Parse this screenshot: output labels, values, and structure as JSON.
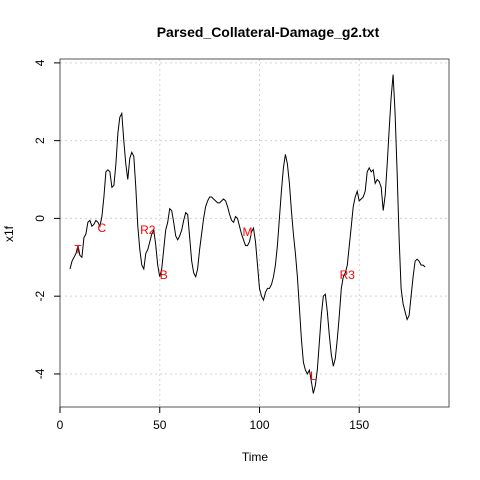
{
  "chart_data": {
    "type": "line",
    "title": "Parsed_Collateral-Damage_g2.txt",
    "xlabel": "Time",
    "ylabel": "x1f",
    "xlim": [
      0,
      195
    ],
    "ylim": [
      -4.85,
      4.1
    ],
    "x_ticks": [
      0,
      50,
      100,
      150
    ],
    "y_ticks": [
      -4,
      -2,
      0,
      2,
      4
    ],
    "grid": true,
    "line_color": "#000000",
    "annotation_color": "#ff0000",
    "series": [
      {
        "points": [
          [
            5,
            -1.3
          ],
          [
            6,
            -1.1
          ],
          [
            7,
            -1.0
          ],
          [
            8,
            -0.9
          ],
          [
            9,
            -0.7
          ],
          [
            10,
            -0.95
          ],
          [
            11,
            -1.0
          ],
          [
            12,
            -0.5
          ],
          [
            13,
            -0.4
          ],
          [
            14,
            -0.1
          ],
          [
            15,
            -0.05
          ],
          [
            16,
            -0.2
          ],
          [
            17,
            -0.15
          ],
          [
            18,
            -0.05
          ],
          [
            19,
            -0.1
          ],
          [
            20,
            -0.2
          ],
          [
            21,
            0.05
          ],
          [
            22,
            0.55
          ],
          [
            23,
            1.2
          ],
          [
            24,
            1.25
          ],
          [
            25,
            1.2
          ],
          [
            26,
            0.8
          ],
          [
            27,
            0.85
          ],
          [
            28,
            1.4
          ],
          [
            29,
            2.2
          ],
          [
            30,
            2.6
          ],
          [
            31,
            2.7
          ],
          [
            32,
            2.0
          ],
          [
            33,
            1.4
          ],
          [
            34,
            1.0
          ],
          [
            35,
            1.55
          ],
          [
            36,
            1.7
          ],
          [
            37,
            1.6
          ],
          [
            38,
            0.8
          ],
          [
            39,
            -0.2
          ],
          [
            40,
            -0.8
          ],
          [
            41,
            -1.2
          ],
          [
            42,
            -1.3
          ],
          [
            43,
            -0.9
          ],
          [
            44,
            -0.8
          ],
          [
            45,
            -0.6
          ],
          [
            46,
            -0.4
          ],
          [
            47,
            -0.3
          ],
          [
            48,
            -0.7
          ],
          [
            49,
            -1.2
          ],
          [
            50,
            -1.5
          ],
          [
            51,
            -1.3
          ],
          [
            52,
            -0.8
          ],
          [
            53,
            -0.3
          ],
          [
            54,
            -0.1
          ],
          [
            55,
            0.25
          ],
          [
            56,
            0.2
          ],
          [
            57,
            -0.1
          ],
          [
            58,
            -0.45
          ],
          [
            59,
            -0.55
          ],
          [
            60,
            -0.45
          ],
          [
            61,
            -0.3
          ],
          [
            62,
            -0.05
          ],
          [
            63,
            0.15
          ],
          [
            64,
            0.1
          ],
          [
            65,
            -0.5
          ],
          [
            66,
            -1.1
          ],
          [
            67,
            -1.4
          ],
          [
            68,
            -1.5
          ],
          [
            69,
            -1.3
          ],
          [
            70,
            -0.8
          ],
          [
            71,
            -0.4
          ],
          [
            72,
            0.0
          ],
          [
            73,
            0.3
          ],
          [
            74,
            0.45
          ],
          [
            75,
            0.55
          ],
          [
            76,
            0.55
          ],
          [
            77,
            0.5
          ],
          [
            78,
            0.45
          ],
          [
            79,
            0.4
          ],
          [
            80,
            0.4
          ],
          [
            81,
            0.45
          ],
          [
            82,
            0.5
          ],
          [
            83,
            0.45
          ],
          [
            84,
            0.3
          ],
          [
            85,
            0.1
          ],
          [
            86,
            -0.05
          ],
          [
            87,
            -0.1
          ],
          [
            88,
            0.05
          ],
          [
            89,
            0.0
          ],
          [
            90,
            -0.2
          ],
          [
            91,
            -0.4
          ],
          [
            92,
            -0.55
          ],
          [
            93,
            -0.7
          ],
          [
            94,
            -0.7
          ],
          [
            95,
            -0.6
          ],
          [
            96,
            -0.35
          ],
          [
            97,
            -0.25
          ],
          [
            98,
            -0.6
          ],
          [
            99,
            -1.2
          ],
          [
            100,
            -1.8
          ],
          [
            101,
            -2.0
          ],
          [
            102,
            -2.1
          ],
          [
            103,
            -1.9
          ],
          [
            104,
            -1.8
          ],
          [
            105,
            -1.8
          ],
          [
            106,
            -1.7
          ],
          [
            107,
            -1.5
          ],
          [
            108,
            -1.2
          ],
          [
            109,
            -0.7
          ],
          [
            110,
            0.0
          ],
          [
            111,
            0.7
          ],
          [
            112,
            1.3
          ],
          [
            113,
            1.65
          ],
          [
            114,
            1.4
          ],
          [
            115,
            0.9
          ],
          [
            116,
            0.2
          ],
          [
            117,
            -0.4
          ],
          [
            118,
            -0.9
          ],
          [
            119,
            -1.5
          ],
          [
            120,
            -2.3
          ],
          [
            121,
            -3.1
          ],
          [
            122,
            -3.7
          ],
          [
            123,
            -3.9
          ],
          [
            124,
            -4.0
          ],
          [
            125,
            -3.9
          ],
          [
            126,
            -4.2
          ],
          [
            127,
            -4.5
          ],
          [
            128,
            -4.3
          ],
          [
            129,
            -3.9
          ],
          [
            130,
            -3.2
          ],
          [
            131,
            -2.5
          ],
          [
            132,
            -2.0
          ],
          [
            133,
            -1.95
          ],
          [
            134,
            -2.4
          ],
          [
            135,
            -3.0
          ],
          [
            136,
            -3.5
          ],
          [
            137,
            -3.8
          ],
          [
            138,
            -3.6
          ],
          [
            139,
            -3.1
          ],
          [
            140,
            -2.5
          ],
          [
            141,
            -1.8
          ],
          [
            142,
            -1.5
          ],
          [
            143,
            -1.4
          ],
          [
            144,
            -1.2
          ],
          [
            145,
            -0.7
          ],
          [
            146,
            -0.2
          ],
          [
            147,
            0.3
          ],
          [
            148,
            0.55
          ],
          [
            149,
            0.7
          ],
          [
            150,
            0.45
          ],
          [
            151,
            0.5
          ],
          [
            152,
            0.55
          ],
          [
            153,
            0.7
          ],
          [
            154,
            1.2
          ],
          [
            155,
            1.3
          ],
          [
            156,
            1.2
          ],
          [
            157,
            1.25
          ],
          [
            158,
            0.9
          ],
          [
            159,
            1.0
          ],
          [
            160,
            0.95
          ],
          [
            161,
            0.8
          ],
          [
            162,
            0.2
          ],
          [
            163,
            0.6
          ],
          [
            164,
            1.4
          ],
          [
            165,
            2.3
          ],
          [
            166,
            3.1
          ],
          [
            167,
            3.7
          ],
          [
            168,
            2.7
          ],
          [
            169,
            1.2
          ],
          [
            170,
            -0.5
          ],
          [
            171,
            -1.8
          ],
          [
            172,
            -2.2
          ],
          [
            173,
            -2.4
          ],
          [
            174,
            -2.6
          ],
          [
            175,
            -2.5
          ],
          [
            176,
            -2.0
          ],
          [
            177,
            -1.5
          ],
          [
            178,
            -1.1
          ],
          [
            179,
            -1.05
          ],
          [
            180,
            -1.1
          ],
          [
            181,
            -1.2
          ],
          [
            182,
            -1.2
          ],
          [
            183,
            -1.25
          ]
        ]
      }
    ],
    "annotations": [
      {
        "text": "T",
        "x": 9,
        "y": -0.8
      },
      {
        "text": "C",
        "x": 21,
        "y": -0.25
      },
      {
        "text": "R2",
        "x": 44,
        "y": -0.3
      },
      {
        "text": "B",
        "x": 52,
        "y": -1.45
      },
      {
        "text": "M",
        "x": 94,
        "y": -0.35
      },
      {
        "text": "L",
        "x": 127,
        "y": -4.05
      },
      {
        "text": "R3",
        "x": 144,
        "y": -1.45
      }
    ]
  }
}
